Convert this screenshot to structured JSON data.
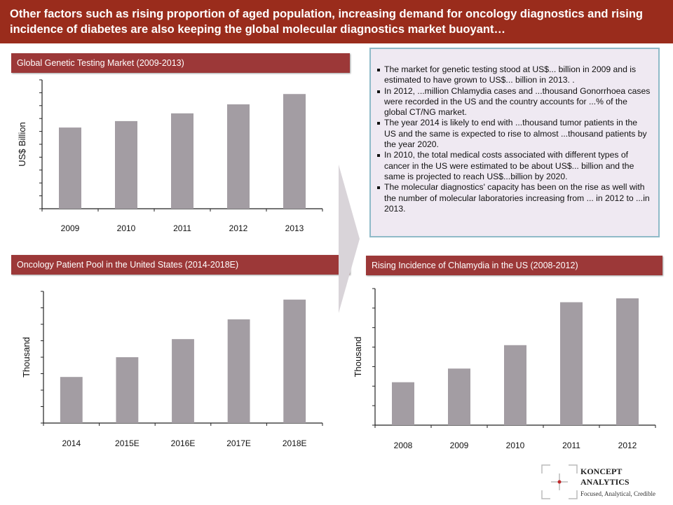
{
  "headline": "Other factors such as rising proportion of aged population, increasing demand for oncology diagnostics and rising incidence of diabetes are also keeping the global molecular diagnostics market buoyant…",
  "bullets": [
    "The market for genetic testing stood at US$... billion in 2009 and is estimated to have grown to US$... billion in 2013. .",
    "In 2012, ...million Chlamydia cases and ...thousand Gonorrhoea cases were recorded in the US and the country accounts for ...% of the global CT/NG market.",
    "The year 2014 is likely to end with ...thousand tumor patients in the US and the same is expected to rise to almost ...thousand patients by the year 2020.",
    "In 2010, the total medical costs associated with different types of cancer in the US were estimated to be about US$... billion and the same is projected to reach US$...billion by 2020.",
    "The molecular diagnostics' capacity has been on the rise as well with the number of molecular laboratories increasing from ... in 2012 to ...in 2013."
  ],
  "logo": {
    "line1": "KONCEPT",
    "line2": "ANALYTICS",
    "tagline": "Focused, Analytical, Credible"
  },
  "colors": {
    "headline_bg": "#9a2c1c",
    "header_bg": "#9c3838",
    "bar": "#a39da3",
    "textbox_bg": "#efe9f2",
    "textbox_border": "#8fbac8"
  },
  "chart_data": [
    {
      "type": "bar",
      "title": "Global Genetic Testing Market (2009-2013)",
      "xlabel": "",
      "ylabel": "US$ Billion",
      "categories": [
        "2009",
        "2010",
        "2011",
        "2012",
        "2013"
      ],
      "values": [
        6.3,
        6.8,
        7.4,
        8.1,
        8.9
      ],
      "ylim": [
        0,
        10
      ],
      "y_tick_labels": false,
      "grid": false
    },
    {
      "type": "bar",
      "title": "Oncology Patient Pool in the United States (2014-2018E)",
      "xlabel": "",
      "ylabel": "Thousand",
      "categories": [
        "2014",
        "2015E",
        "2016E",
        "2017E",
        "2018E"
      ],
      "values": [
        2.8,
        4.0,
        5.1,
        6.3,
        7.5
      ],
      "ylim": [
        0,
        8
      ],
      "y_tick_labels": false,
      "grid": false
    },
    {
      "type": "bar",
      "title": "Rising Incidence of Chlamydia in the US (2008-2012)",
      "xlabel": "",
      "ylabel": "Thousand",
      "categories": [
        "2008",
        "2009",
        "2010",
        "2011",
        "2012"
      ],
      "values": [
        2.2,
        2.9,
        4.1,
        6.3,
        6.5
      ],
      "ylim": [
        0,
        7
      ],
      "y_tick_labels": false,
      "grid": false
    }
  ]
}
